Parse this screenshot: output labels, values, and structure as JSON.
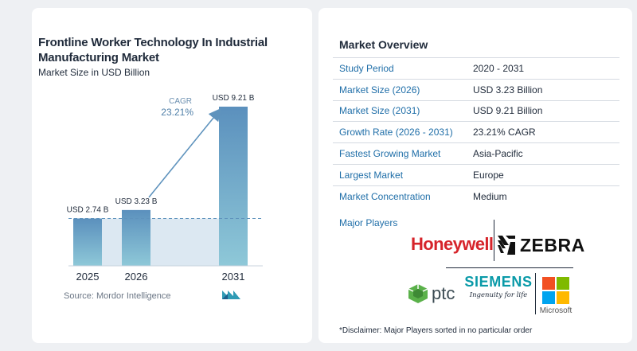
{
  "chart_data": {
    "type": "bar",
    "title": "Frontline Worker Technology In Industrial Manufacturing Market",
    "subtitle": "Market Size in USD Billion",
    "categories": [
      "2025",
      "2026",
      "2031"
    ],
    "values": [
      2.74,
      3.23,
      9.21
    ],
    "value_labels": [
      "USD 2.74 B",
      "USD 3.23 B",
      "USD 9.21 B"
    ],
    "cagr_label": "CAGR",
    "cagr_value": "23.21%",
    "colors": {
      "bar_top": "#5b90bd",
      "bar_bottom": "#8ec8d8",
      "arrow": "#5f93bd",
      "band": "#dce8f2",
      "dashed": "#5f93bd"
    }
  },
  "source": {
    "text": "Source:  Mordor Intelligence",
    "logo_icon": "mordor-intelligence-logo-icon"
  },
  "overview": {
    "title": "Market Overview",
    "rows": [
      {
        "label": "Study Period",
        "value": "2020 - 2031"
      },
      {
        "label": "Market Size (2026)",
        "value": "USD 3.23 Billion"
      },
      {
        "label": "Market Size (2031)",
        "value": "USD 9.21 Billion"
      },
      {
        "label": "Growth Rate (2026 - 2031)",
        "value": "23.21% CAGR"
      },
      {
        "label": "Fastest Growing Market",
        "value": "Asia-Pacific"
      },
      {
        "label": "Largest Market",
        "value": "Europe"
      },
      {
        "label": "Market Concentration",
        "value": "Medium"
      }
    ]
  },
  "players": {
    "label": "Major Players",
    "honeywell": "Honeywell",
    "zebra": "ZEBRA",
    "ptc": "ptc",
    "siemens": "SIEMENS",
    "siemens_tagline": "Ingenuity for life",
    "microsoft": "Microsoft"
  },
  "disclaimer": "*Disclaimer: Major Players sorted in no particular order"
}
